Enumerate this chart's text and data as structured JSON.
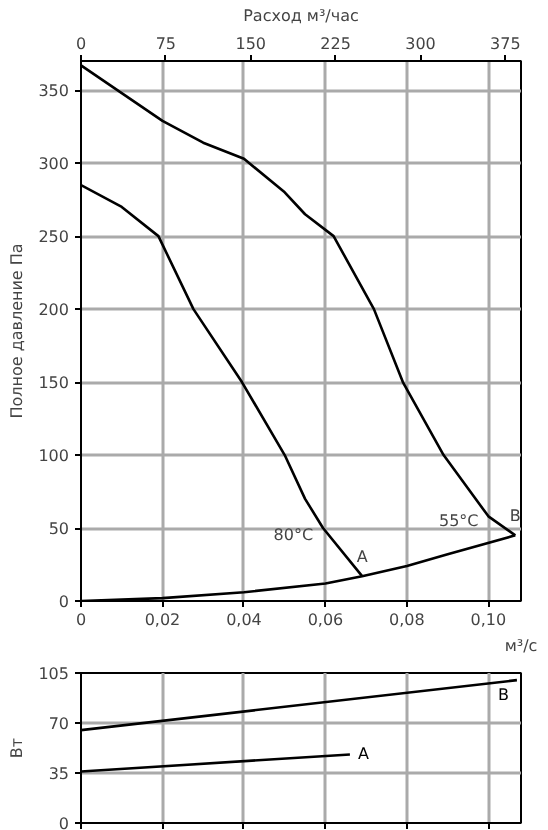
{
  "chart_data": [
    {
      "type": "line",
      "xlabel": "м³/с",
      "ylabel": "Полное давление Па",
      "x2label": "Расход м³/час",
      "xlim": [
        0,
        0.108
      ],
      "ylim": [
        0,
        370
      ],
      "xticks": [
        0,
        {
          "value": 0.02,
          "label": "0,02"
        },
        {
          "value": 0.04,
          "label": "0,04"
        },
        {
          "value": 0.06,
          "label": "0,06"
        },
        {
          "value": 0.08,
          "label": "0,08"
        },
        {
          "value": 0.1,
          "label": "0,10"
        }
      ],
      "yticks": [
        0,
        50,
        100,
        150,
        200,
        250,
        300,
        350
      ],
      "x2lim": [
        0,
        388.8
      ],
      "x2ticks": [
        0,
        75,
        150,
        225,
        300,
        375
      ],
      "grid": true,
      "marker": "none",
      "line_style": "solid",
      "series": [
        {
          "color": "#000000",
          "x": [
            0,
            0.01,
            0.02,
            0.03,
            0.04,
            0.05,
            0.055,
            0.062,
            0.0719,
            0.079,
            0.089,
            0.1,
            0.1066
          ],
          "values": [
            367,
            348,
            329,
            314,
            303,
            280,
            265,
            250,
            200,
            150,
            100,
            58,
            45
          ]
        },
        {
          "color": "#000000",
          "x": [
            0,
            0.01,
            0.019,
            0.0276,
            0.0395,
            0.05,
            0.055,
            0.0594,
            0.069
          ],
          "values": [
            285,
            270,
            250,
            200,
            150,
            100,
            70,
            50,
            17
          ]
        },
        {
          "color": "#000000",
          "x": [
            0,
            0.02,
            0.04,
            0.06,
            0.069,
            0.08,
            0.09,
            0.1066
          ],
          "values": [
            0,
            2,
            6,
            12,
            17,
            24,
            32,
            45
          ]
        }
      ],
      "annotations": [
        {
          "text": "55°C",
          "x": 0.1015,
          "y": 55
        },
        {
          "text": "80°C",
          "x": 0.0609,
          "y": 45
        },
        {
          "text": "A",
          "x": 0.069,
          "y": 17
        },
        {
          "text": "B",
          "x": 0.1066,
          "y": 45
        }
      ]
    },
    {
      "type": "line",
      "ylabel": "Вт",
      "xlim": [
        0,
        0.108
      ],
      "ylim": [
        0,
        105
      ],
      "xticks": [
        0,
        0.02,
        0.04,
        0.06,
        0.08,
        0.1
      ],
      "yticks": [
        0,
        35,
        70,
        105
      ],
      "tick_labels": "y",
      "grid": true,
      "marker": "none",
      "line_style": "solid",
      "series": [
        {
          "name": "B",
          "color": "#000000",
          "x": [
            0,
            0.107
          ],
          "values": [
            65,
            100
          ]
        },
        {
          "name": "A",
          "color": "#000000",
          "x": [
            0,
            0.066
          ],
          "values": [
            36,
            48
          ]
        }
      ]
    }
  ]
}
